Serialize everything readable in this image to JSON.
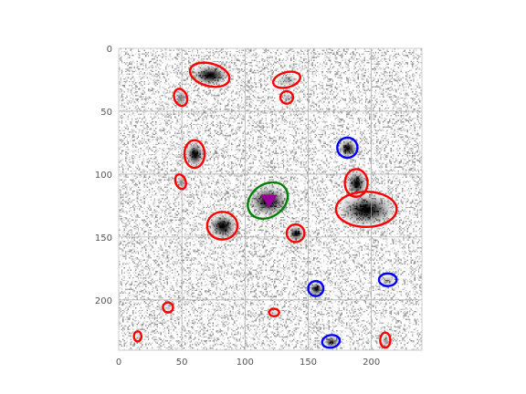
{
  "chart_data": {
    "type": "scatter",
    "title": "",
    "xlabel": "",
    "ylabel": "",
    "xlim": [
      0,
      240
    ],
    "ylim": [
      240,
      0
    ],
    "y_inverted": true,
    "grid": true,
    "xticks": [
      0,
      50,
      100,
      150,
      200
    ],
    "yticks": [
      0,
      50,
      100,
      150,
      200
    ],
    "background": "grayscale noise image (astronomical field) with dark source blobs",
    "colors": {
      "red": "#ff0000",
      "blue": "#0000ff",
      "green": "#008000",
      "magenta": "#990099"
    },
    "sources": [
      {
        "x": 72,
        "y": 21,
        "rx": 16,
        "ry": 9,
        "angle": 15,
        "flux": 1.0,
        "color": "red"
      },
      {
        "x": 133,
        "y": 25,
        "rx": 11,
        "ry": 6,
        "angle": -15,
        "flux": 0.3,
        "color": "red"
      },
      {
        "x": 49,
        "y": 39,
        "rx": 5,
        "ry": 7,
        "angle": -20,
        "flux": 0.6,
        "color": "red"
      },
      {
        "x": 133,
        "y": 39,
        "rx": 5,
        "ry": 5,
        "angle": 0,
        "flux": 0.3,
        "color": "red"
      },
      {
        "x": 181,
        "y": 79,
        "rx": 8,
        "ry": 8,
        "angle": 0,
        "flux": 1.0,
        "color": "blue"
      },
      {
        "x": 60,
        "y": 84,
        "rx": 8,
        "ry": 11,
        "angle": 0,
        "flux": 1.0,
        "color": "red"
      },
      {
        "x": 188,
        "y": 107,
        "rx": 9,
        "ry": 11,
        "angle": 0,
        "flux": 1.0,
        "color": "red"
      },
      {
        "x": 49,
        "y": 106,
        "rx": 4,
        "ry": 6,
        "angle": -20,
        "flux": 0.5,
        "color": "red"
      },
      {
        "x": 118,
        "y": 121,
        "rx": 17,
        "ry": 13,
        "angle": -35,
        "flux": 1.0,
        "color": "green"
      },
      {
        "x": 196,
        "y": 128,
        "rx": 24,
        "ry": 14,
        "angle": 0,
        "flux": 1.0,
        "color": "red"
      },
      {
        "x": 82,
        "y": 141,
        "rx": 12,
        "ry": 11,
        "angle": 0,
        "flux": 1.0,
        "color": "red"
      },
      {
        "x": 140,
        "y": 147,
        "rx": 7,
        "ry": 7,
        "angle": 0,
        "flux": 1.0,
        "color": "red"
      },
      {
        "x": 213,
        "y": 184,
        "rx": 7,
        "ry": 5,
        "angle": 0,
        "flux": 0.3,
        "color": "blue"
      },
      {
        "x": 156,
        "y": 191,
        "rx": 6,
        "ry": 6,
        "angle": 0,
        "flux": 1.0,
        "color": "blue"
      },
      {
        "x": 39,
        "y": 206,
        "rx": 4,
        "ry": 4,
        "angle": 0,
        "flux": 0.2,
        "color": "red"
      },
      {
        "x": 123,
        "y": 210,
        "rx": 4,
        "ry": 3,
        "angle": 0,
        "flux": 0.2,
        "color": "red"
      },
      {
        "x": 15,
        "y": 229,
        "rx": 3,
        "ry": 4,
        "angle": 0,
        "flux": 0.2,
        "color": "red"
      },
      {
        "x": 168,
        "y": 233,
        "rx": 7,
        "ry": 5,
        "angle": -10,
        "flux": 0.8,
        "color": "blue"
      },
      {
        "x": 211,
        "y": 232,
        "rx": 4,
        "ry": 6,
        "angle": 0,
        "flux": 0.4,
        "color": "red"
      }
    ],
    "marker": {
      "shape": "triangle",
      "x": 119,
      "y": 121,
      "color": "magenta"
    }
  }
}
